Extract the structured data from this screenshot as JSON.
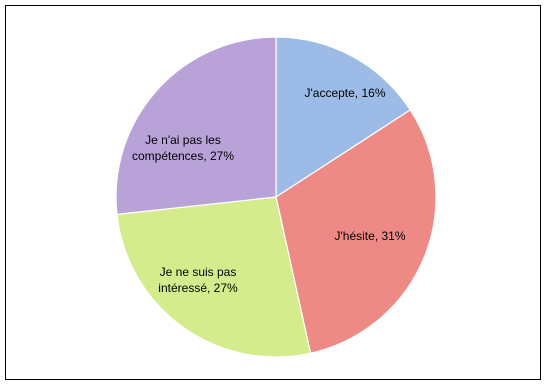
{
  "chart_data": {
    "type": "pie",
    "title": "",
    "slices": [
      {
        "label": "J'accepte",
        "value": 16,
        "label_text": "J'accepte, 16%",
        "color": "#9cbbe6"
      },
      {
        "label": "J'hésite",
        "value": 31,
        "label_text": "J'hésite, 31%",
        "color": "#ee8a86"
      },
      {
        "label": "Je ne suis pas intéressé",
        "value": 27,
        "label_lines": [
          "Je ne suis pas",
          "intéressé, 27%"
        ],
        "color": "#d4ec8c"
      },
      {
        "label": "Je n'ai pas les compétences",
        "value": 27,
        "label_lines": [
          "Je n'ai pas les",
          "compétences, 27%"
        ],
        "color": "#b9a2d8"
      }
    ],
    "legend": "none"
  }
}
